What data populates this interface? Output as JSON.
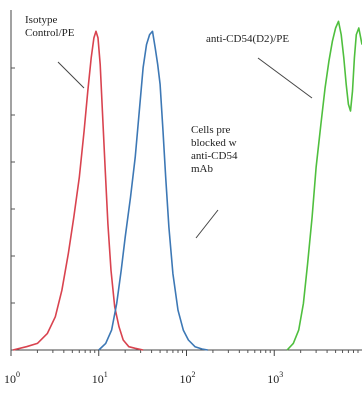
{
  "chart_data": {
    "type": "line",
    "title": "",
    "xlabel": "",
    "ylabel": "",
    "x_scale": "log",
    "xlim": [
      1,
      10000
    ],
    "ylim": [
      0,
      1
    ],
    "grid": false,
    "x_ticks": [
      {
        "value": 1,
        "base": "10",
        "exp": "0"
      },
      {
        "value": 10,
        "base": "10",
        "exp": "1"
      },
      {
        "value": 100,
        "base": "10",
        "exp": "2"
      },
      {
        "value": 1000,
        "base": "10",
        "exp": "3"
      }
    ],
    "series": [
      {
        "name": "Isotype Control/PE",
        "color": "#d9434f",
        "x": [
          1.05,
          1.5,
          2,
          2.6,
          3.2,
          3.8,
          4.5,
          5.2,
          6.0,
          6.8,
          7.5,
          8.2,
          8.8,
          9.3,
          9.8,
          10.4,
          11.0,
          11.8,
          12.7,
          13.8,
          15.2,
          17,
          19,
          22,
          26,
          32
        ],
        "y": [
          0.0,
          0.01,
          0.02,
          0.05,
          0.1,
          0.18,
          0.29,
          0.4,
          0.52,
          0.66,
          0.78,
          0.88,
          0.94,
          0.96,
          0.94,
          0.86,
          0.72,
          0.55,
          0.38,
          0.24,
          0.13,
          0.07,
          0.03,
          0.01,
          0.005,
          0.0
        ]
      },
      {
        "name": "Cells pre blocked w anti-CD54 mAb",
        "color": "#3d78b5",
        "x": [
          10,
          12,
          14,
          16,
          18,
          20,
          23,
          26,
          29,
          32,
          35,
          38,
          41,
          44,
          47,
          50,
          54,
          58,
          63,
          70,
          80,
          92,
          105,
          125,
          150,
          175
        ],
        "y": [
          0.0,
          0.02,
          0.06,
          0.14,
          0.24,
          0.34,
          0.46,
          0.58,
          0.72,
          0.85,
          0.92,
          0.95,
          0.96,
          0.91,
          0.86,
          0.8,
          0.66,
          0.52,
          0.37,
          0.23,
          0.12,
          0.06,
          0.03,
          0.01,
          0.003,
          0.0
        ]
      },
      {
        "name": "anti-CD54(D2)/PE",
        "color": "#4fbf3e",
        "x": [
          1400,
          1650,
          1900,
          2150,
          2400,
          2700,
          3000,
          3400,
          3800,
          4200,
          4600,
          5000,
          5400,
          5800,
          6200,
          6600,
          7000,
          7400,
          7800,
          8200,
          8600,
          9200,
          10000
        ],
        "y": [
          0.0,
          0.02,
          0.06,
          0.14,
          0.26,
          0.4,
          0.55,
          0.68,
          0.79,
          0.87,
          0.93,
          0.97,
          0.99,
          0.95,
          0.88,
          0.8,
          0.74,
          0.72,
          0.78,
          0.88,
          0.95,
          0.97,
          0.92
        ]
      }
    ],
    "annotations": [
      {
        "lines": [
          "Isotype",
          "Control/PE"
        ]
      },
      {
        "lines": [
          "Cells pre",
          "blocked w",
          "anti-CD54",
          "mAb"
        ]
      },
      {
        "lines": [
          "anti-CD54(D2)/PE"
        ]
      }
    ]
  }
}
